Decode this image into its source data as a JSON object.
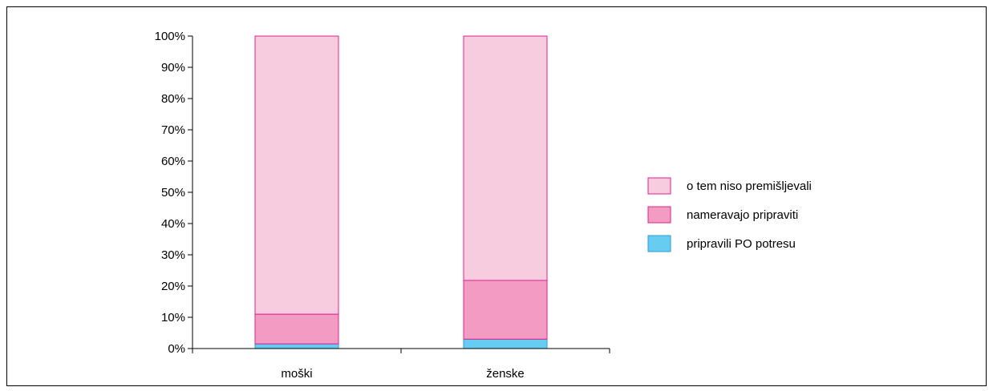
{
  "chart_data": {
    "type": "bar",
    "stacked": "percent",
    "categories": [
      "moški",
      "ženske"
    ],
    "series": [
      {
        "name": "pripravili PO potresu",
        "values": [
          1.5,
          3
        ],
        "color": "#66ccf2",
        "stroke": "#2a9fd6"
      },
      {
        "name": "nameravajo pripraviti",
        "values": [
          9.5,
          18.8
        ],
        "color": "#f29cc4",
        "stroke": "#e0208a"
      },
      {
        "name": "o tem niso premišljevali",
        "values": [
          89,
          78.2
        ],
        "color": "#f8ccdf",
        "stroke": "#e0208a"
      }
    ],
    "ylim": [
      0,
      100
    ],
    "yticks": [
      "0%",
      "10%",
      "20%",
      "30%",
      "40%",
      "50%",
      "60%",
      "70%",
      "80%",
      "90%",
      "100%"
    ],
    "legend_position": "right",
    "legend_order": [
      "o tem niso premišljevali",
      "nameravajo pripraviti",
      "pripravili PO potresu"
    ],
    "grid": false,
    "title": "",
    "xlabel": "",
    "ylabel": ""
  }
}
